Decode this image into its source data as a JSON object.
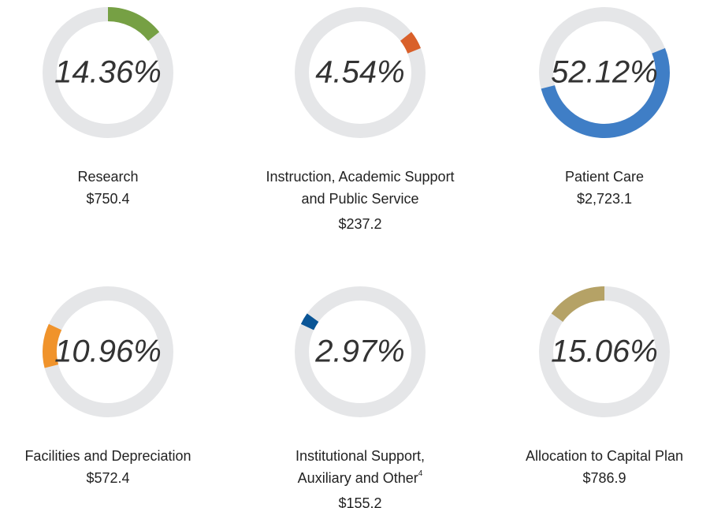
{
  "chart_data": [
    {
      "type": "donut",
      "label_lines": [
        "Research"
      ],
      "amount": "$750.4",
      "values": [
        14.36
      ],
      "value_labels": [
        "14.36%"
      ],
      "color": "#76a044"
    },
    {
      "type": "donut",
      "label_lines": [
        "Instruction, Academic Support",
        "and Public Service"
      ],
      "amount": "$237.2",
      "values": [
        4.54
      ],
      "value_labels": [
        "4.54%"
      ],
      "color": "#d9602a"
    },
    {
      "type": "donut",
      "label_lines": [
        "Patient Care"
      ],
      "amount": "$2,723.1",
      "values": [
        52.12
      ],
      "value_labels": [
        "52.12%"
      ],
      "color": "#3f7ec6"
    },
    {
      "type": "donut",
      "label_lines": [
        "Facilities and Depreciation"
      ],
      "amount": "$572.4",
      "values": [
        10.96
      ],
      "value_labels": [
        "10.96%"
      ],
      "color": "#f0932b"
    },
    {
      "type": "donut",
      "label_lines": [
        "Institutional Support,",
        "Auxiliary and Other"
      ],
      "footnote": "4",
      "amount": "$155.2",
      "values": [
        2.97
      ],
      "value_labels": [
        "2.97%"
      ],
      "color": "#0a5596"
    },
    {
      "type": "donut",
      "label_lines": [
        "Allocation to Capital Plan"
      ],
      "amount": "$786.9",
      "values": [
        15.06
      ],
      "value_labels": [
        "15.06%"
      ],
      "color": "#b5a266"
    }
  ]
}
